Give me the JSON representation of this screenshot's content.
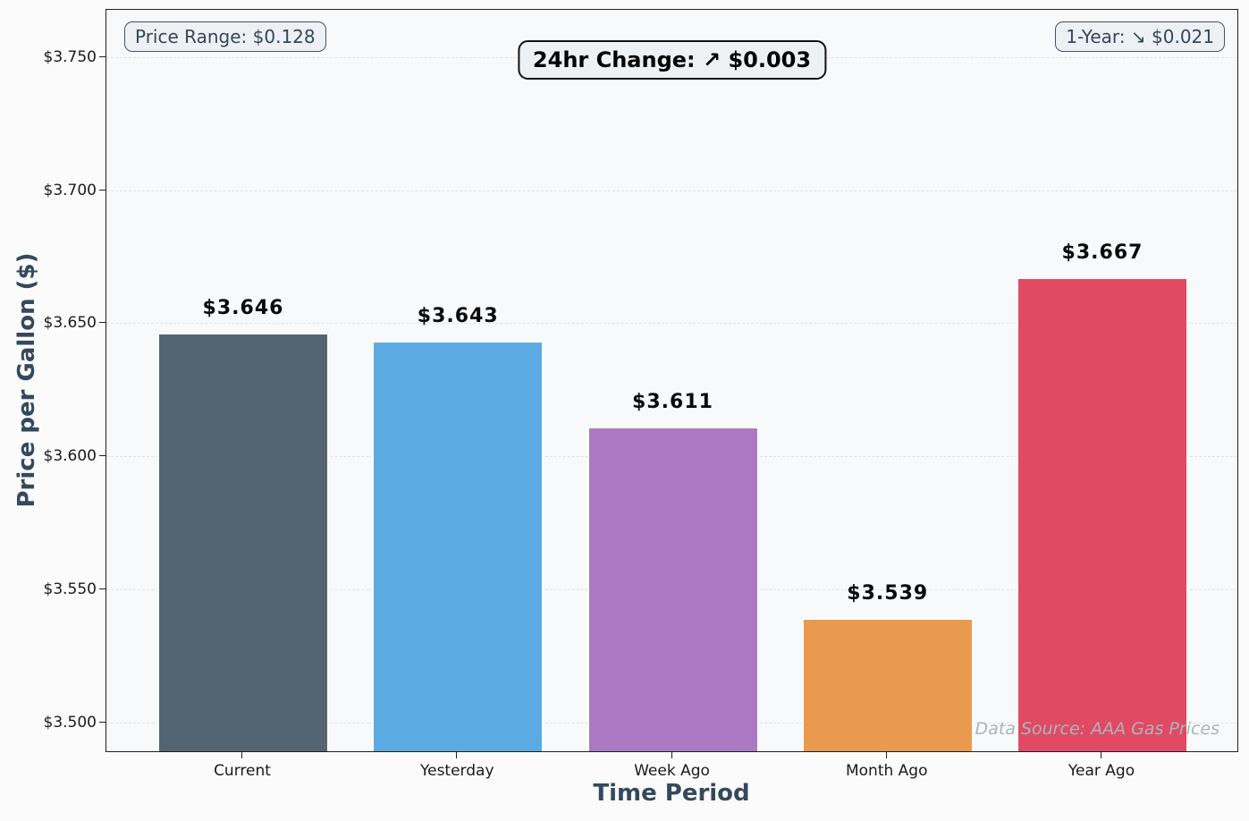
{
  "chart_data": {
    "type": "bar",
    "title": "",
    "xlabel": "Time Period",
    "ylabel": "Price per Gallon ($)",
    "categories": [
      "Current",
      "Yesterday",
      "Week Ago",
      "Month Ago",
      "Year Ago"
    ],
    "values": [
      3.646,
      3.643,
      3.611,
      3.539,
      3.667
    ],
    "value_labels": [
      "$3.646",
      "$3.643",
      "$3.611",
      "$3.539",
      "$3.667"
    ],
    "bar_colors": [
      "#556472",
      "#5babe2",
      "#ab79c4",
      "#ea9a4e",
      "#e04a63"
    ],
    "ylim": [
      3.489,
      3.768
    ],
    "yticks": [
      3.5,
      3.55,
      3.6,
      3.65,
      3.7,
      3.75
    ],
    "ytick_labels": [
      "$3.500",
      "$3.550",
      "$3.600",
      "$3.650",
      "$3.700",
      "$3.750"
    ],
    "grid": {
      "axis": "y",
      "style": "dashed"
    },
    "legend": {
      "visible": false
    },
    "annotations": [
      {
        "id": "price-range",
        "text": "Price Range: $0.128",
        "position": "top-left"
      },
      {
        "id": "day-change",
        "text": "24hr Change: ↗ $0.003",
        "position": "top-center"
      },
      {
        "id": "year-change",
        "text": "1-Year: ↘ $0.021",
        "position": "top-right"
      }
    ],
    "watermark": "Data Source: AAA Gas Prices"
  },
  "colors": {
    "figure_bg": "#fbfbfb",
    "plot_bg": "#f8f9fa",
    "grid": "#e3e3e3",
    "bar_edge": "#ffffff",
    "axis_title": "#34495e",
    "tick_label": "#1a1a1a",
    "value_label": "#0a0a0a",
    "badge_bg": "#edf1f4",
    "badge_text_slate": "#33475b",
    "badge_border_slate": "#44545f",
    "badge_border_dark": "#111111",
    "watermark": "#a9b5bc"
  }
}
